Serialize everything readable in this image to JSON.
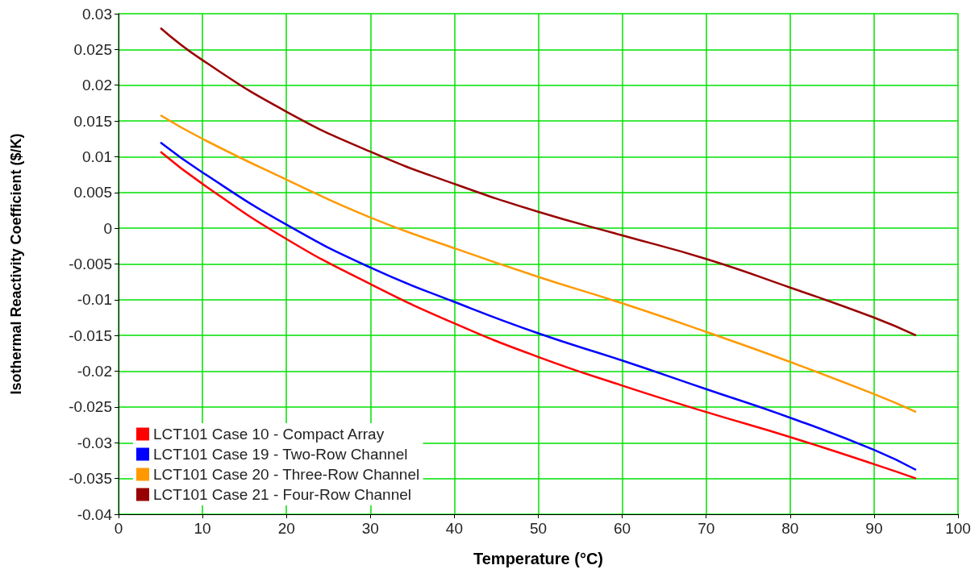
{
  "chart_data": {
    "type": "line",
    "xlabel": "Temperature (°C)",
    "ylabel": "Isothermal Reactivity Coefficient ($/K)",
    "x": [
      5,
      10,
      20,
      30,
      40,
      50,
      60,
      70,
      80,
      90,
      95
    ],
    "series": [
      {
        "name": "LCT101 Case 10 - Compact Array",
        "color": "#ff0000",
        "values": [
          0.0107,
          0.0062,
          -0.0015,
          -0.0078,
          -0.0133,
          -0.018,
          -0.022,
          -0.0257,
          -0.0292,
          -0.033,
          -0.035
        ]
      },
      {
        "name": "LCT101 Case 19 - Two-Row Channel",
        "color": "#0000ff",
        "values": [
          0.012,
          0.0078,
          0.0005,
          -0.0055,
          -0.0103,
          -0.0147,
          -0.0185,
          -0.0225,
          -0.0265,
          -0.031,
          -0.0338
        ]
      },
      {
        "name": "LCT101 Case 20 - Three-Row Channel",
        "color": "#ff9900",
        "values": [
          0.0158,
          0.0125,
          0.0068,
          0.0015,
          -0.0028,
          -0.0068,
          -0.0105,
          -0.0145,
          -0.0187,
          -0.0232,
          -0.0257
        ]
      },
      {
        "name": "LCT101 Case 21 - Four-Row Channel",
        "color": "#990000",
        "values": [
          0.028,
          0.0235,
          0.0163,
          0.0107,
          0.0062,
          0.0023,
          -0.001,
          -0.0043,
          -0.0083,
          -0.0125,
          -0.015
        ]
      }
    ],
    "xlim": [
      0,
      100
    ],
    "xticks": [
      0,
      10,
      20,
      30,
      40,
      50,
      60,
      70,
      80,
      90,
      100
    ],
    "ylim": [
      -0.04,
      0.03
    ],
    "yticks": [
      -0.04,
      -0.035,
      -0.03,
      -0.025,
      -0.02,
      -0.015,
      -0.01,
      -0.005,
      0,
      0.005,
      0.01,
      0.015,
      0.02,
      0.025,
      0.03
    ],
    "grid": true,
    "legend": "bottom left"
  }
}
